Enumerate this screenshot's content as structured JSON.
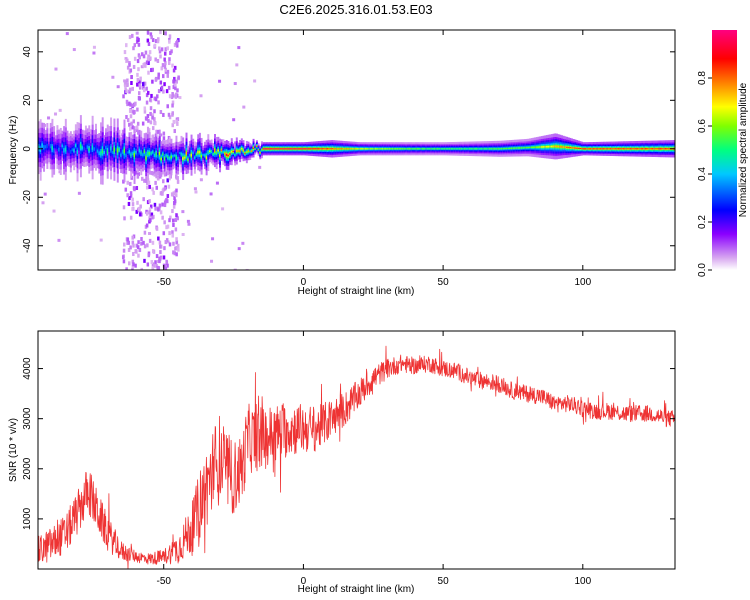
{
  "title": "C2E6.2025.316.01.53.E03",
  "chart_data": [
    {
      "type": "heatmap",
      "xlabel": "Height of straight line (km)",
      "ylabel": "Frequency (Hz)",
      "xlim": [
        -95,
        133
      ],
      "ylim": [
        -50,
        49
      ],
      "xticks": [
        -50,
        0,
        50,
        100
      ],
      "yticks": [
        -40,
        -20,
        0,
        20,
        40
      ],
      "colorbar": {
        "label": "Normalized spectral amplitude",
        "range": [
          0,
          1
        ],
        "ticks": [
          "0.0",
          "0.2",
          "0.4",
          "0.6",
          "0.8"
        ],
        "tick_values": [
          0.0,
          0.2,
          0.4,
          0.6,
          0.8
        ],
        "colors": [
          "#ffffff",
          "#d8a8f0",
          "#8a00ff",
          "#0000ff",
          "#00c8ff",
          "#00ff80",
          "#80ff00",
          "#ffff00",
          "#ff8000",
          "#ff0000",
          "#ff0080"
        ]
      },
      "band": {
        "center_hz": [
          [
            -95,
            0
          ],
          [
            -80,
            0
          ],
          [
            -60,
            -2
          ],
          [
            -50,
            -3
          ],
          [
            -40,
            -3
          ],
          [
            -30,
            -2
          ],
          [
            -20,
            -1
          ],
          [
            -15,
            0
          ],
          [
            0,
            0
          ],
          [
            10,
            0
          ],
          [
            30,
            0
          ],
          [
            50,
            0
          ],
          [
            70,
            0
          ],
          [
            90,
            1
          ],
          [
            100,
            0
          ],
          [
            133,
            0
          ]
        ],
        "halfwidth_hz": [
          [
            -95,
            6
          ],
          [
            -70,
            6
          ],
          [
            -55,
            5
          ],
          [
            -45,
            4
          ],
          [
            -30,
            3
          ],
          [
            -20,
            2
          ],
          [
            -15,
            1.5
          ],
          [
            0,
            1.5
          ],
          [
            10,
            2
          ],
          [
            20,
            1.5
          ],
          [
            50,
            1.5
          ],
          [
            80,
            2
          ],
          [
            90,
            3
          ],
          [
            100,
            1.5
          ],
          [
            133,
            2
          ]
        ],
        "peak_amplitude": [
          [
            -95,
            0.35
          ],
          [
            -70,
            0.45
          ],
          [
            -50,
            0.5
          ],
          [
            -40,
            0.6
          ],
          [
            -30,
            0.7
          ],
          [
            -20,
            0.75
          ],
          [
            -15,
            1.0
          ],
          [
            0,
            1.0
          ],
          [
            20,
            0.7
          ],
          [
            40,
            0.6
          ],
          [
            60,
            0.55
          ],
          [
            80,
            0.6
          ],
          [
            100,
            0.9
          ],
          [
            133,
            0.9
          ]
        ],
        "noise_columns_km": [
          [
            -65,
            -45
          ]
        ]
      }
    },
    {
      "type": "line",
      "xlabel": "Height of straight line (km)",
      "ylabel": "SNR (10 * v/v)",
      "xlim": [
        -95,
        133
      ],
      "ylim": [
        0,
        4750
      ],
      "xticks": [
        -50,
        0,
        50,
        100
      ],
      "yticks": [
        1000,
        2000,
        3000,
        4000
      ],
      "color": "#ee3333",
      "series": [
        {
          "name": "SNR",
          "x": [
            -95,
            -90,
            -85,
            -80,
            -77,
            -75,
            -70,
            -65,
            -60,
            -55,
            -50,
            -45,
            -40,
            -37,
            -35,
            -32,
            -30,
            -28,
            -25,
            -22,
            -20,
            -15,
            -10,
            -5,
            0,
            5,
            10,
            15,
            20,
            25,
            30,
            35,
            40,
            45,
            50,
            55,
            60,
            65,
            70,
            75,
            80,
            85,
            90,
            95,
            100,
            105,
            110,
            115,
            120,
            125,
            130,
            133
          ],
          "y": [
            350,
            500,
            700,
            1200,
            1600,
            1300,
            700,
            350,
            250,
            200,
            250,
            400,
            800,
            1300,
            1600,
            2000,
            2200,
            2000,
            1800,
            2000,
            2600,
            2600,
            2700,
            2800,
            2800,
            2800,
            3000,
            3200,
            3500,
            3800,
            4000,
            4100,
            4050,
            4100,
            4000,
            3950,
            3800,
            3750,
            3700,
            3550,
            3500,
            3450,
            3300,
            3300,
            3200,
            3150,
            3150,
            3100,
            3100,
            3100,
            3000,
            3000
          ],
          "spread": [
            300,
            350,
            400,
            450,
            500,
            450,
            350,
            200,
            120,
            120,
            150,
            300,
            500,
            700,
            800,
            900,
            900,
            800,
            750,
            700,
            700,
            650,
            600,
            550,
            500,
            450,
            400,
            350,
            300,
            250,
            200,
            180,
            170,
            170,
            170,
            170,
            170,
            170,
            170,
            170,
            170,
            170,
            170,
            170,
            170,
            170,
            170,
            170,
            170,
            170,
            170,
            170
          ]
        }
      ]
    }
  ]
}
